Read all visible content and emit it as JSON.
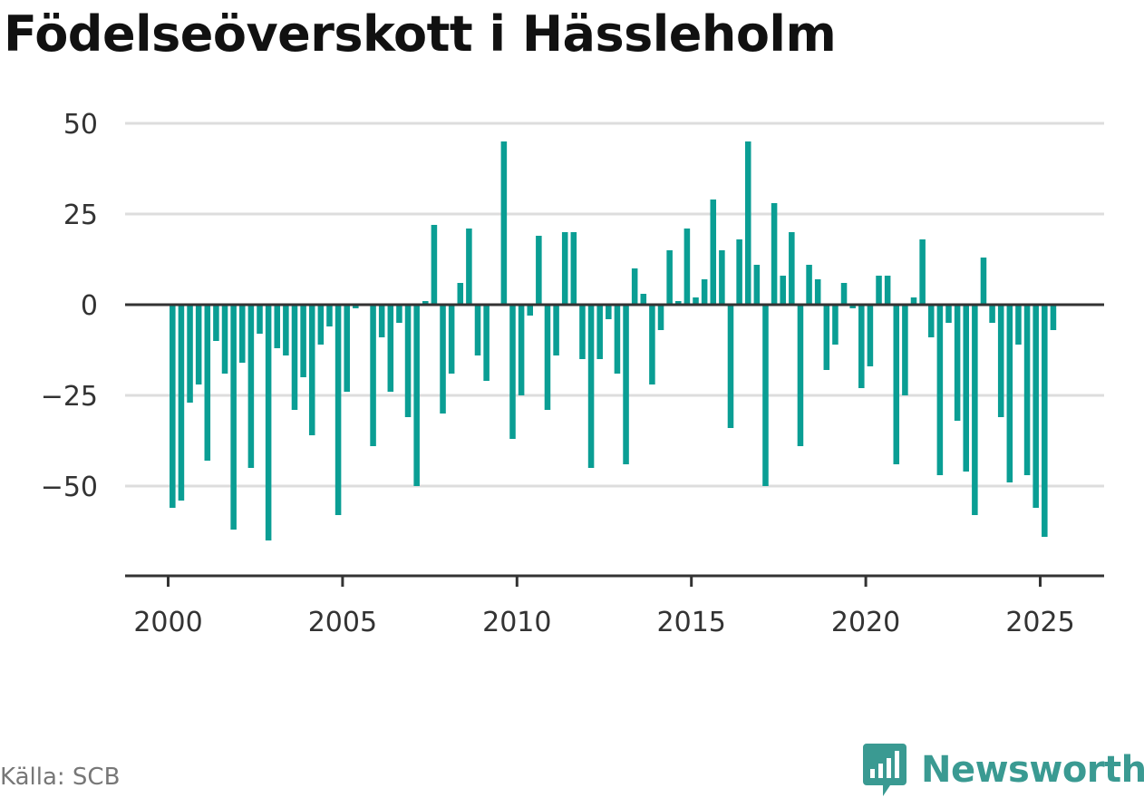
{
  "title": "Födelseöverskott i Hässleholm",
  "source": "Källa: SCB",
  "brand": "Newsworthy",
  "colors": {
    "bar": "#0a9e94",
    "grid": "#dddddd",
    "axis": "#333333",
    "brand": "#3a9a92"
  },
  "chart_data": {
    "type": "bar",
    "xlim": [
      2000,
      2025.83
    ],
    "ylim": [
      -77,
      50
    ],
    "yticks": [
      50,
      25,
      0,
      -25,
      -50
    ],
    "yticklabels": [
      "50",
      "25",
      "0",
      "−25",
      "−50"
    ],
    "xticks": [
      2000,
      2005,
      2010,
      2015,
      2020,
      2025
    ],
    "xticklabels": [
      "2000",
      "2005",
      "2010",
      "2015",
      "2020",
      "2025"
    ],
    "grid": true,
    "bar_period": "quarter",
    "first_period": 2000.125,
    "values": [
      -56,
      -54,
      -27,
      -22,
      -43,
      -10,
      -19,
      -62,
      -16,
      -45,
      -8,
      -65,
      -12,
      -14,
      -29,
      -20,
      -36,
      -11,
      -6,
      -58,
      -24,
      -1,
      0,
      -39,
      -9,
      -24,
      -5,
      -31,
      -50,
      1,
      22,
      -30,
      -19,
      6,
      21,
      -14,
      -21,
      0,
      45,
      -37,
      -25,
      -3,
      19,
      -29,
      -14,
      20,
      20,
      -15,
      -45,
      -15,
      -4,
      -19,
      -44,
      10,
      3,
      -22,
      -7,
      15,
      1,
      21,
      2,
      7,
      29,
      15,
      -34,
      18,
      45,
      11,
      -50,
      28,
      8,
      20,
      -39,
      11,
      7,
      -18,
      -11,
      6,
      -1,
      -23,
      -17,
      8,
      8,
      -44,
      -25,
      2,
      18,
      -9,
      -47,
      -5,
      -32,
      -46,
      -58,
      13,
      -5,
      -31,
      -49,
      -11,
      -47,
      -56,
      -64,
      -7
    ]
  }
}
